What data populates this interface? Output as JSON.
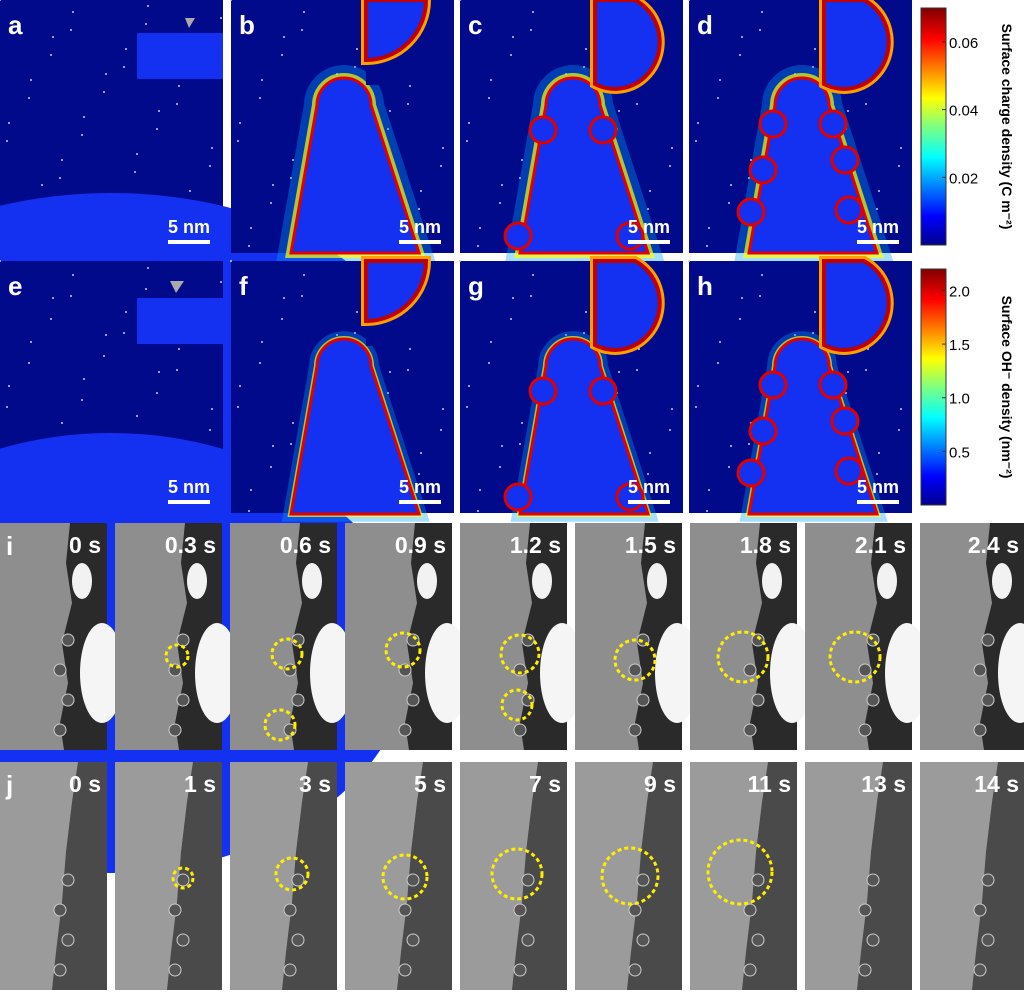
{
  "simulation": {
    "rows": [
      {
        "panels": [
          {
            "label": "a",
            "scale": "5 nm"
          },
          {
            "label": "b",
            "scale": "5 nm"
          },
          {
            "label": "c",
            "scale": "5 nm"
          },
          {
            "label": "d",
            "scale": "5 nm"
          }
        ],
        "colorbar": {
          "title": "Surface charge density (C m⁻²)",
          "lim": [
            0,
            0.07
          ],
          "ticks": [
            0.02,
            0.04,
            0.06
          ]
        }
      },
      {
        "panels": [
          {
            "label": "e",
            "scale": "5 nm"
          },
          {
            "label": "f",
            "scale": "5 nm"
          },
          {
            "label": "g",
            "scale": "5 nm"
          },
          {
            "label": "h",
            "scale": "5 nm"
          }
        ],
        "colorbar": {
          "title": "Surface OH⁻ density (nm⁻²)",
          "lim": [
            0,
            2.2
          ],
          "ticks": [
            0.5,
            {
              "value": 1,
              "label": "1.0"
            },
            1.5,
            {
              "value": 2,
              "label": "2.0"
            }
          ]
        }
      }
    ]
  },
  "timelapse": {
    "rows": [
      {
        "label": "i",
        "times": [
          "0 s",
          "0.3 s",
          "0.6 s",
          "0.9 s",
          "1.2 s",
          "1.5 s",
          "1.8 s",
          "2.1 s",
          "2.4 s"
        ]
      },
      {
        "label": "j",
        "times": [
          "0 s",
          "1 s",
          "3 s",
          "5 s",
          "7 s",
          "9 s",
          "11 s",
          "13 s",
          "14 s"
        ]
      }
    ]
  }
}
